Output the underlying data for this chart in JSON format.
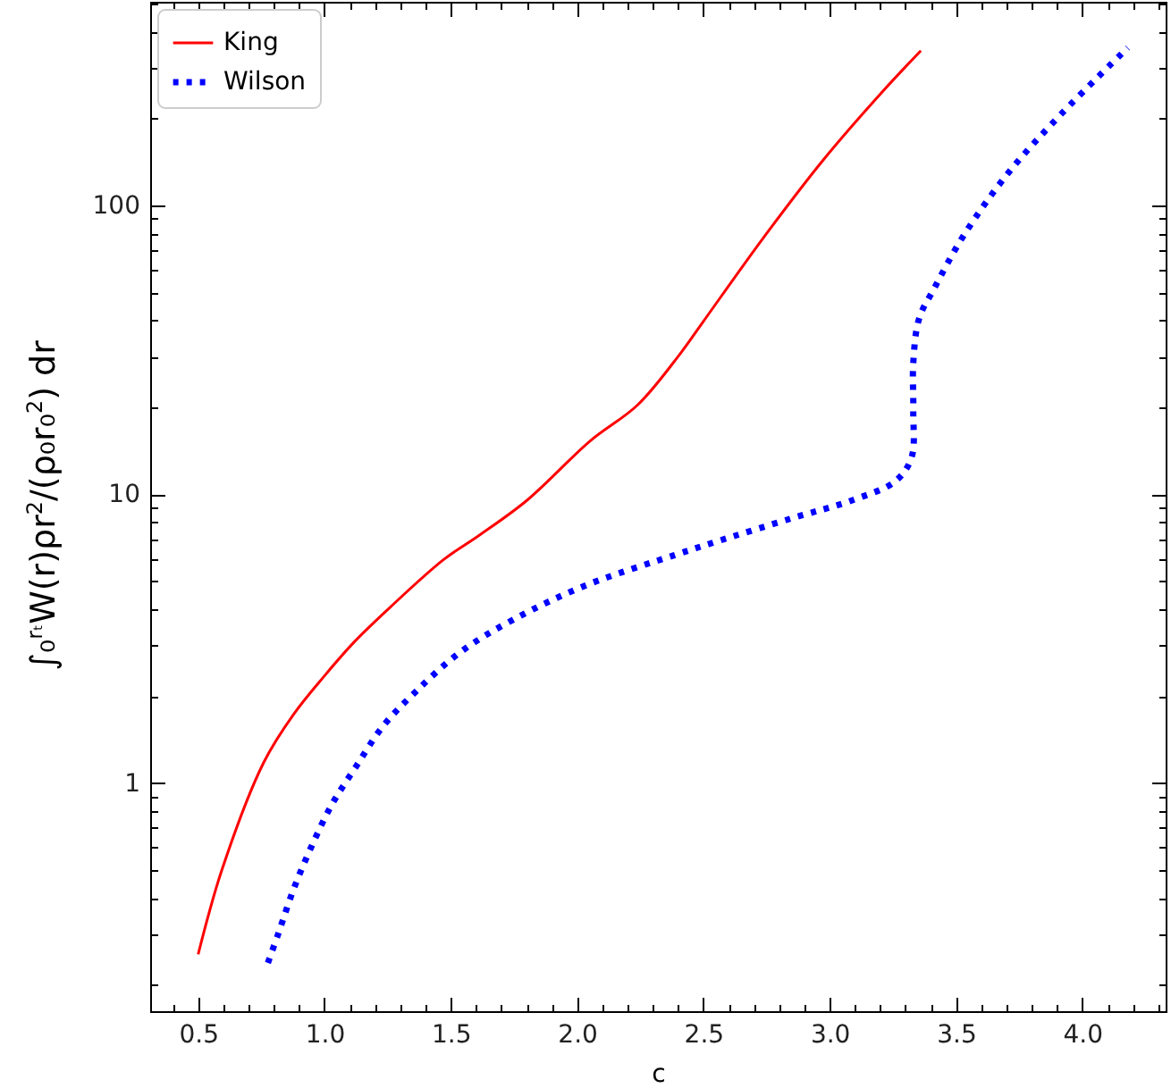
{
  "chart_data": {
    "type": "line",
    "xlabel": "c",
    "ylabel": "∫₀$^{rₜ}$W(r)ρr$^{2}$/(ρ₀r₀$^{2}$) dr",
    "log": "y",
    "legend": "top left",
    "xlim": [
      0.31,
      4.33
    ],
    "ylim": [
      0.162,
      508
    ],
    "xticks": [
      {
        "value": 0.4,
        "label": null
      },
      {
        "value": 0.5,
        "label": "0.5"
      },
      {
        "value": 0.6,
        "label": null
      },
      {
        "value": 0.7,
        "label": null
      },
      {
        "value": 0.8,
        "label": null
      },
      {
        "value": 0.9,
        "label": null
      },
      {
        "value": 1,
        "label": "1.0"
      },
      {
        "value": 1.1,
        "label": null
      },
      {
        "value": 1.2,
        "label": null
      },
      {
        "value": 1.3,
        "label": null
      },
      {
        "value": 1.4,
        "label": null
      },
      {
        "value": 1.5,
        "label": "1.5"
      },
      {
        "value": 1.6,
        "label": null
      },
      {
        "value": 1.7,
        "label": null
      },
      {
        "value": 1.8,
        "label": null
      },
      {
        "value": 1.9,
        "label": null
      },
      {
        "value": 2,
        "label": "2.0"
      },
      {
        "value": 2.1,
        "label": null
      },
      {
        "value": 2.2,
        "label": null
      },
      {
        "value": 2.3,
        "label": null
      },
      {
        "value": 2.4,
        "label": null
      },
      {
        "value": 2.5,
        "label": "2.5"
      },
      {
        "value": 2.6,
        "label": null
      },
      {
        "value": 2.7,
        "label": null
      },
      {
        "value": 2.8,
        "label": null
      },
      {
        "value": 2.9,
        "label": null
      },
      {
        "value": 3,
        "label": "3.0"
      },
      {
        "value": 3.1,
        "label": null
      },
      {
        "value": 3.2,
        "label": null
      },
      {
        "value": 3.3,
        "label": null
      },
      {
        "value": 3.4,
        "label": null
      },
      {
        "value": 3.5,
        "label": "3.5"
      },
      {
        "value": 3.6,
        "label": null
      },
      {
        "value": 3.7,
        "label": null
      },
      {
        "value": 3.8,
        "label": null
      },
      {
        "value": 3.9,
        "label": null
      },
      {
        "value": 4,
        "label": "4.0"
      },
      {
        "value": 4.1,
        "label": null
      },
      {
        "value": 4.2,
        "label": null
      },
      {
        "value": 4.3,
        "label": null
      }
    ],
    "yticks": [
      {
        "value": 0.2,
        "label": null
      },
      {
        "value": 0.3,
        "label": null
      },
      {
        "value": 0.4,
        "label": null
      },
      {
        "value": 0.5,
        "label": null
      },
      {
        "value": 0.6,
        "label": null
      },
      {
        "value": 0.7,
        "label": null
      },
      {
        "value": 0.8,
        "label": null
      },
      {
        "value": 0.9,
        "label": null
      },
      1,
      {
        "value": 2,
        "label": null
      },
      {
        "value": 3,
        "label": null
      },
      {
        "value": 4,
        "label": null
      },
      {
        "value": 5,
        "label": null
      },
      {
        "value": 6,
        "label": null
      },
      {
        "value": 7,
        "label": null
      },
      {
        "value": 8,
        "label": null
      },
      {
        "value": 9,
        "label": null
      },
      10,
      {
        "value": 20,
        "label": null
      },
      {
        "value": 30,
        "label": null
      },
      {
        "value": 40,
        "label": null
      },
      {
        "value": 50,
        "label": null
      },
      {
        "value": 60,
        "label": null
      },
      {
        "value": 70,
        "label": null
      },
      {
        "value": 80,
        "label": null
      },
      {
        "value": 90,
        "label": null
      },
      100,
      {
        "value": 200,
        "label": null
      },
      {
        "value": 300,
        "label": null
      },
      {
        "value": 400,
        "label": null
      },
      {
        "value": 500,
        "label": null
      }
    ],
    "series": [
      {
        "name": "King",
        "color": "#ff0000",
        "line_style": "solid",
        "x": [
          0.5,
          0.594,
          0.76,
          0.878,
          1.0,
          1.118,
          1.26,
          1.472,
          1.609,
          1.8,
          2.052,
          2.24,
          2.406,
          2.5,
          2.736,
          2.972,
          3.207,
          3.361
        ],
        "values": [
          0.255,
          0.5,
          1.18,
          1.73,
          2.35,
          3.08,
          4.06,
          5.94,
          7.17,
          9.5,
          15.3,
          20.4,
          30.5,
          39.7,
          77,
          143,
          247,
          344
        ]
      },
      {
        "name": "Wilson",
        "color": "#0000ff",
        "line_style": "dotted",
        "x": [
          0.776,
          0.818,
          0.878,
          0.948,
          1.031,
          1.125,
          1.231,
          1.361,
          1.538,
          1.75,
          2.033,
          2.387,
          2.548,
          2.855,
          3.09,
          3.26,
          3.324,
          3.331,
          3.331,
          3.354,
          3.413,
          3.531,
          3.708,
          3.92,
          4.18
        ],
        "values": [
          0.238,
          0.302,
          0.429,
          0.601,
          0.847,
          1.14,
          1.57,
          2.07,
          2.84,
          3.69,
          4.83,
          6.16,
          6.84,
          8.28,
          9.54,
          11.1,
          13.4,
          19.5,
          28.5,
          40.6,
          51.5,
          78.9,
          130,
          209,
          352
        ]
      }
    ]
  }
}
